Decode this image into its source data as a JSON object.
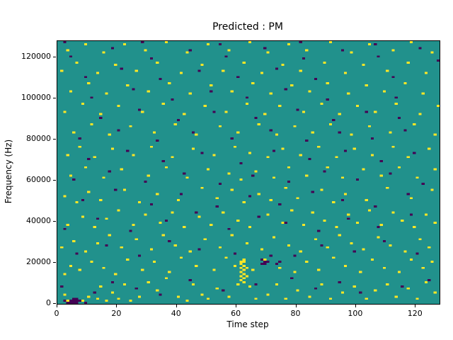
{
  "figure": {
    "title": "Predicted : PM"
  },
  "chart_data": {
    "type": "heatmap",
    "title": "Predicted : PM",
    "xlabel": "Time step",
    "ylabel": "Frequency (Hz)",
    "x_range": [
      0,
      128
    ],
    "y_range": [
      0,
      128000
    ],
    "x_ticks": [
      0,
      20,
      40,
      60,
      80,
      100,
      120
    ],
    "y_ticks": [
      0,
      20000,
      40000,
      60000,
      80000,
      100000,
      120000
    ],
    "grid": [
      128,
      128
    ],
    "hz_per_cell": 1000,
    "colors": {
      "background": "#21918c",
      "high": "#fde725",
      "low": "#440154",
      "figure_bg": "#ffffff",
      "axis": "#000000"
    },
    "high_cells": [
      [
        2,
        4
      ],
      [
        3,
        1
      ],
      [
        8,
        1
      ],
      [
        10,
        3
      ],
      [
        13,
        2
      ],
      [
        16,
        1
      ],
      [
        18,
        5
      ],
      [
        20,
        2
      ],
      [
        24,
        1
      ],
      [
        27,
        3
      ],
      [
        14,
        8
      ],
      [
        22,
        9
      ],
      [
        30,
        10
      ],
      [
        33,
        6
      ],
      [
        36,
        12
      ],
      [
        40,
        3
      ],
      [
        43,
        1
      ],
      [
        45,
        9
      ],
      [
        48,
        4
      ],
      [
        50,
        2
      ],
      [
        53,
        7
      ],
      [
        57,
        3
      ],
      [
        64,
        8
      ],
      [
        66,
        2
      ],
      [
        70,
        4
      ],
      [
        73,
        9
      ],
      [
        76,
        2
      ],
      [
        80,
        6
      ],
      [
        84,
        3
      ],
      [
        88,
        9
      ],
      [
        91,
        2
      ],
      [
        95,
        5
      ],
      [
        99,
        8
      ],
      [
        103,
        2
      ],
      [
        106,
        6
      ],
      [
        110,
        9
      ],
      [
        113,
        3
      ],
      [
        117,
        7
      ],
      [
        120,
        2
      ],
      [
        123,
        10
      ],
      [
        126,
        5
      ],
      [
        60,
        9
      ],
      [
        61,
        11
      ],
      [
        61,
        13
      ],
      [
        61,
        15
      ],
      [
        61,
        17
      ],
      [
        61,
        19
      ],
      [
        62,
        10
      ],
      [
        62,
        12
      ],
      [
        62,
        14
      ],
      [
        62,
        16
      ],
      [
        62,
        18
      ],
      [
        62,
        20
      ],
      [
        61,
        20
      ],
      [
        62,
        21
      ],
      [
        63,
        13
      ],
      [
        63,
        17
      ],
      [
        2,
        14
      ],
      [
        4,
        18
      ],
      [
        7,
        16
      ],
      [
        11,
        20
      ],
      [
        15,
        17
      ],
      [
        19,
        14
      ],
      [
        23,
        21
      ],
      [
        28,
        16
      ],
      [
        32,
        20
      ],
      [
        37,
        15
      ],
      [
        41,
        22
      ],
      [
        46,
        18
      ],
      [
        52,
        16
      ],
      [
        56,
        22
      ],
      [
        59,
        18
      ],
      [
        65,
        16
      ],
      [
        69,
        21
      ],
      [
        74,
        17
      ],
      [
        79,
        15
      ],
      [
        83,
        20
      ],
      [
        87,
        16
      ],
      [
        92,
        22
      ],
      [
        96,
        18
      ],
      [
        101,
        15
      ],
      [
        105,
        21
      ],
      [
        109,
        17
      ],
      [
        114,
        15
      ],
      [
        118,
        21
      ],
      [
        122,
        17
      ],
      [
        125,
        20
      ],
      [
        1,
        27
      ],
      [
        5,
        30
      ],
      [
        9,
        25
      ],
      [
        13,
        29
      ],
      [
        17,
        33
      ],
      [
        21,
        27
      ],
      [
        26,
        31
      ],
      [
        31,
        26
      ],
      [
        35,
        33
      ],
      [
        39,
        28
      ],
      [
        44,
        25
      ],
      [
        49,
        31
      ],
      [
        54,
        27
      ],
      [
        58,
        33
      ],
      [
        63,
        29
      ],
      [
        68,
        26
      ],
      [
        72,
        32
      ],
      [
        77,
        28
      ],
      [
        81,
        25
      ],
      [
        86,
        31
      ],
      [
        90,
        27
      ],
      [
        94,
        33
      ],
      [
        98,
        29
      ],
      [
        102,
        26
      ],
      [
        107,
        32
      ],
      [
        111,
        28
      ],
      [
        116,
        25
      ],
      [
        121,
        31
      ],
      [
        124,
        27
      ],
      [
        3,
        38
      ],
      [
        8,
        42
      ],
      [
        12,
        37
      ],
      [
        16,
        41
      ],
      [
        20,
        45
      ],
      [
        25,
        38
      ],
      [
        29,
        43
      ],
      [
        34,
        39
      ],
      [
        38,
        44
      ],
      [
        42,
        37
      ],
      [
        47,
        42
      ],
      [
        51,
        38
      ],
      [
        55,
        44
      ],
      [
        60,
        40
      ],
      [
        64,
        37
      ],
      [
        70,
        43
      ],
      [
        75,
        39
      ],
      [
        78,
        45
      ],
      [
        82,
        38
      ],
      [
        85,
        44
      ],
      [
        89,
        40
      ],
      [
        93,
        37
      ],
      [
        97,
        43
      ],
      [
        100,
        39
      ],
      [
        104,
        45
      ],
      [
        108,
        38
      ],
      [
        112,
        44
      ],
      [
        115,
        40
      ],
      [
        119,
        37
      ],
      [
        123,
        43
      ],
      [
        126,
        39
      ],
      [
        2,
        52
      ],
      [
        6,
        49
      ],
      [
        10,
        54
      ],
      [
        14,
        50
      ],
      [
        22,
        55
      ],
      [
        27,
        49
      ],
      [
        33,
        53
      ],
      [
        40,
        50
      ],
      [
        48,
        56
      ],
      [
        53,
        51
      ],
      [
        58,
        55
      ],
      [
        62,
        49
      ],
      [
        67,
        53
      ],
      [
        71,
        50
      ],
      [
        76,
        56
      ],
      [
        80,
        51
      ],
      [
        88,
        55
      ],
      [
        92,
        49
      ],
      [
        96,
        53
      ],
      [
        103,
        50
      ],
      [
        110,
        56
      ],
      [
        118,
        51
      ],
      [
        125,
        55
      ],
      [
        4,
        62
      ],
      [
        9,
        66
      ],
      [
        15,
        61
      ],
      [
        21,
        65
      ],
      [
        30,
        62
      ],
      [
        36,
        66
      ],
      [
        43,
        61
      ],
      [
        50,
        65
      ],
      [
        57,
        63
      ],
      [
        61,
        60
      ],
      [
        66,
        64
      ],
      [
        72,
        61
      ],
      [
        77,
        66
      ],
      [
        83,
        62
      ],
      [
        90,
        66
      ],
      [
        95,
        61
      ],
      [
        102,
        65
      ],
      [
        108,
        62
      ],
      [
        114,
        66
      ],
      [
        120,
        61
      ],
      [
        126,
        65
      ],
      [
        3,
        72
      ],
      [
        7,
        76
      ],
      [
        12,
        71
      ],
      [
        18,
        75
      ],
      [
        25,
        72
      ],
      [
        31,
        76
      ],
      [
        38,
        71
      ],
      [
        45,
        75
      ],
      [
        52,
        72
      ],
      [
        59,
        76
      ],
      [
        64,
        73
      ],
      [
        70,
        71
      ],
      [
        75,
        75
      ],
      [
        81,
        72
      ],
      [
        87,
        76
      ],
      [
        93,
        71
      ],
      [
        99,
        75
      ],
      [
        105,
        72
      ],
      [
        112,
        76
      ],
      [
        117,
        71
      ],
      [
        124,
        75
      ],
      [
        5,
        83
      ],
      [
        11,
        87
      ],
      [
        17,
        82
      ],
      [
        24,
        86
      ],
      [
        32,
        83
      ],
      [
        39,
        87
      ],
      [
        46,
        82
      ],
      [
        54,
        86
      ],
      [
        60,
        83
      ],
      [
        67,
        87
      ],
      [
        73,
        82
      ],
      [
        79,
        86
      ],
      [
        85,
        83
      ],
      [
        91,
        87
      ],
      [
        98,
        82
      ],
      [
        104,
        86
      ],
      [
        111,
        83
      ],
      [
        119,
        87
      ],
      [
        126,
        82
      ],
      [
        2,
        93
      ],
      [
        8,
        97
      ],
      [
        14,
        92
      ],
      [
        20,
        96
      ],
      [
        28,
        93
      ],
      [
        35,
        97
      ],
      [
        42,
        92
      ],
      [
        49,
        96
      ],
      [
        56,
        93
      ],
      [
        63,
        97
      ],
      [
        69,
        92
      ],
      [
        74,
        96
      ],
      [
        82,
        93
      ],
      [
        88,
        97
      ],
      [
        94,
        92
      ],
      [
        100,
        96
      ],
      [
        106,
        93
      ],
      [
        113,
        97
      ],
      [
        121,
        92
      ],
      [
        127,
        96
      ],
      [
        4,
        103
      ],
      [
        10,
        107
      ],
      [
        16,
        102
      ],
      [
        23,
        106
      ],
      [
        30,
        103
      ],
      [
        37,
        107
      ],
      [
        44,
        102
      ],
      [
        51,
        106
      ],
      [
        58,
        103
      ],
      [
        65,
        107
      ],
      [
        71,
        102
      ],
      [
        78,
        106
      ],
      [
        84,
        103
      ],
      [
        90,
        107
      ],
      [
        97,
        102
      ],
      [
        103,
        106
      ],
      [
        109,
        103
      ],
      [
        116,
        107
      ],
      [
        122,
        102
      ],
      [
        1,
        113
      ],
      [
        6,
        117
      ],
      [
        13,
        112
      ],
      [
        19,
        116
      ],
      [
        26,
        113
      ],
      [
        33,
        117
      ],
      [
        41,
        112
      ],
      [
        48,
        116
      ],
      [
        55,
        113
      ],
      [
        62,
        117
      ],
      [
        68,
        112
      ],
      [
        75,
        116
      ],
      [
        81,
        113
      ],
      [
        89,
        117
      ],
      [
        96,
        112
      ],
      [
        102,
        116
      ],
      [
        110,
        113
      ],
      [
        117,
        117
      ],
      [
        123,
        112
      ],
      [
        3,
        123
      ],
      [
        9,
        126
      ],
      [
        15,
        122
      ],
      [
        22,
        126
      ],
      [
        29,
        123
      ],
      [
        36,
        127
      ],
      [
        43,
        122
      ],
      [
        50,
        126
      ],
      [
        57,
        123
      ],
      [
        64,
        127
      ],
      [
        70,
        122
      ],
      [
        77,
        126
      ],
      [
        83,
        123
      ],
      [
        91,
        127
      ],
      [
        98,
        122
      ],
      [
        104,
        126
      ],
      [
        112,
        123
      ],
      [
        118,
        127
      ],
      [
        125,
        122
      ]
    ],
    "low_cells": [
      [
        3,
        0
      ],
      [
        4,
        0
      ],
      [
        5,
        0
      ],
      [
        6,
        0
      ],
      [
        4,
        1
      ],
      [
        5,
        1
      ],
      [
        6,
        1
      ],
      [
        7,
        1
      ],
      [
        5,
        2
      ],
      [
        6,
        2
      ],
      [
        9,
        0
      ],
      [
        2,
        1
      ],
      [
        68,
        19
      ],
      [
        69,
        19
      ],
      [
        69,
        20
      ],
      [
        70,
        20
      ],
      [
        68,
        21
      ],
      [
        73,
        19
      ],
      [
        74,
        20
      ],
      [
        71,
        23
      ],
      [
        1,
        8
      ],
      [
        12,
        5
      ],
      [
        18,
        10
      ],
      [
        26,
        7
      ],
      [
        34,
        4
      ],
      [
        44,
        11
      ],
      [
        55,
        6
      ],
      [
        66,
        9
      ],
      [
        78,
        12
      ],
      [
        86,
        7
      ],
      [
        94,
        10
      ],
      [
        101,
        5
      ],
      [
        115,
        8
      ],
      [
        124,
        11
      ],
      [
        6,
        24
      ],
      [
        16,
        28
      ],
      [
        27,
        23
      ],
      [
        37,
        30
      ],
      [
        47,
        26
      ],
      [
        59,
        24
      ],
      [
        79,
        23
      ],
      [
        88,
        28
      ],
      [
        99,
        25
      ],
      [
        109,
        30
      ],
      [
        120,
        24
      ],
      [
        2,
        36
      ],
      [
        13,
        41
      ],
      [
        24,
        35
      ],
      [
        36,
        40
      ],
      [
        46,
        44
      ],
      [
        57,
        36
      ],
      [
        67,
        42
      ],
      [
        76,
        39
      ],
      [
        87,
        35
      ],
      [
        97,
        41
      ],
      [
        107,
        37
      ],
      [
        118,
        43
      ],
      [
        8,
        50
      ],
      [
        19,
        55
      ],
      [
        31,
        48
      ],
      [
        41,
        53
      ],
      [
        53,
        47
      ],
      [
        64,
        52
      ],
      [
        74,
        48
      ],
      [
        85,
        54
      ],
      [
        95,
        50
      ],
      [
        106,
        47
      ],
      [
        117,
        53
      ],
      [
        5,
        60
      ],
      [
        17,
        64
      ],
      [
        29,
        59
      ],
      [
        42,
        63
      ],
      [
        54,
        58
      ],
      [
        65,
        62
      ],
      [
        77,
        59
      ],
      [
        89,
        64
      ],
      [
        100,
        60
      ],
      [
        111,
        63
      ],
      [
        122,
        58
      ],
      [
        10,
        70
      ],
      [
        23,
        74
      ],
      [
        35,
        69
      ],
      [
        48,
        73
      ],
      [
        61,
        68
      ],
      [
        72,
        74
      ],
      [
        84,
        70
      ],
      [
        96,
        74
      ],
      [
        108,
        69
      ],
      [
        119,
        73
      ],
      [
        7,
        80
      ],
      [
        20,
        84
      ],
      [
        33,
        79
      ],
      [
        45,
        83
      ],
      [
        58,
        80
      ],
      [
        71,
        84
      ],
      [
        83,
        79
      ],
      [
        94,
        83
      ],
      [
        105,
        80
      ],
      [
        116,
        84
      ],
      [
        14,
        90
      ],
      [
        27,
        94
      ],
      [
        40,
        89
      ],
      [
        52,
        93
      ],
      [
        66,
        90
      ],
      [
        80,
        94
      ],
      [
        92,
        89
      ],
      [
        103,
        93
      ],
      [
        114,
        90
      ],
      [
        11,
        100
      ],
      [
        25,
        104
      ],
      [
        38,
        99
      ],
      [
        51,
        103
      ],
      [
        63,
        100
      ],
      [
        76,
        104
      ],
      [
        90,
        99
      ],
      [
        113,
        100
      ],
      [
        9,
        110
      ],
      [
        21,
        114
      ],
      [
        34,
        109
      ],
      [
        47,
        113
      ],
      [
        60,
        110
      ],
      [
        73,
        114
      ],
      [
        86,
        109
      ],
      [
        112,
        110
      ],
      [
        4,
        120
      ],
      [
        18,
        124
      ],
      [
        31,
        119
      ],
      [
        44,
        123
      ],
      [
        56,
        120
      ],
      [
        69,
        124
      ],
      [
        82,
        119
      ],
      [
        95,
        123
      ],
      [
        107,
        120
      ],
      [
        121,
        124
      ],
      [
        2,
        127
      ],
      [
        28,
        127
      ],
      [
        54,
        126
      ],
      [
        81,
        127
      ],
      [
        106,
        126
      ],
      [
        127,
        118
      ]
    ]
  }
}
